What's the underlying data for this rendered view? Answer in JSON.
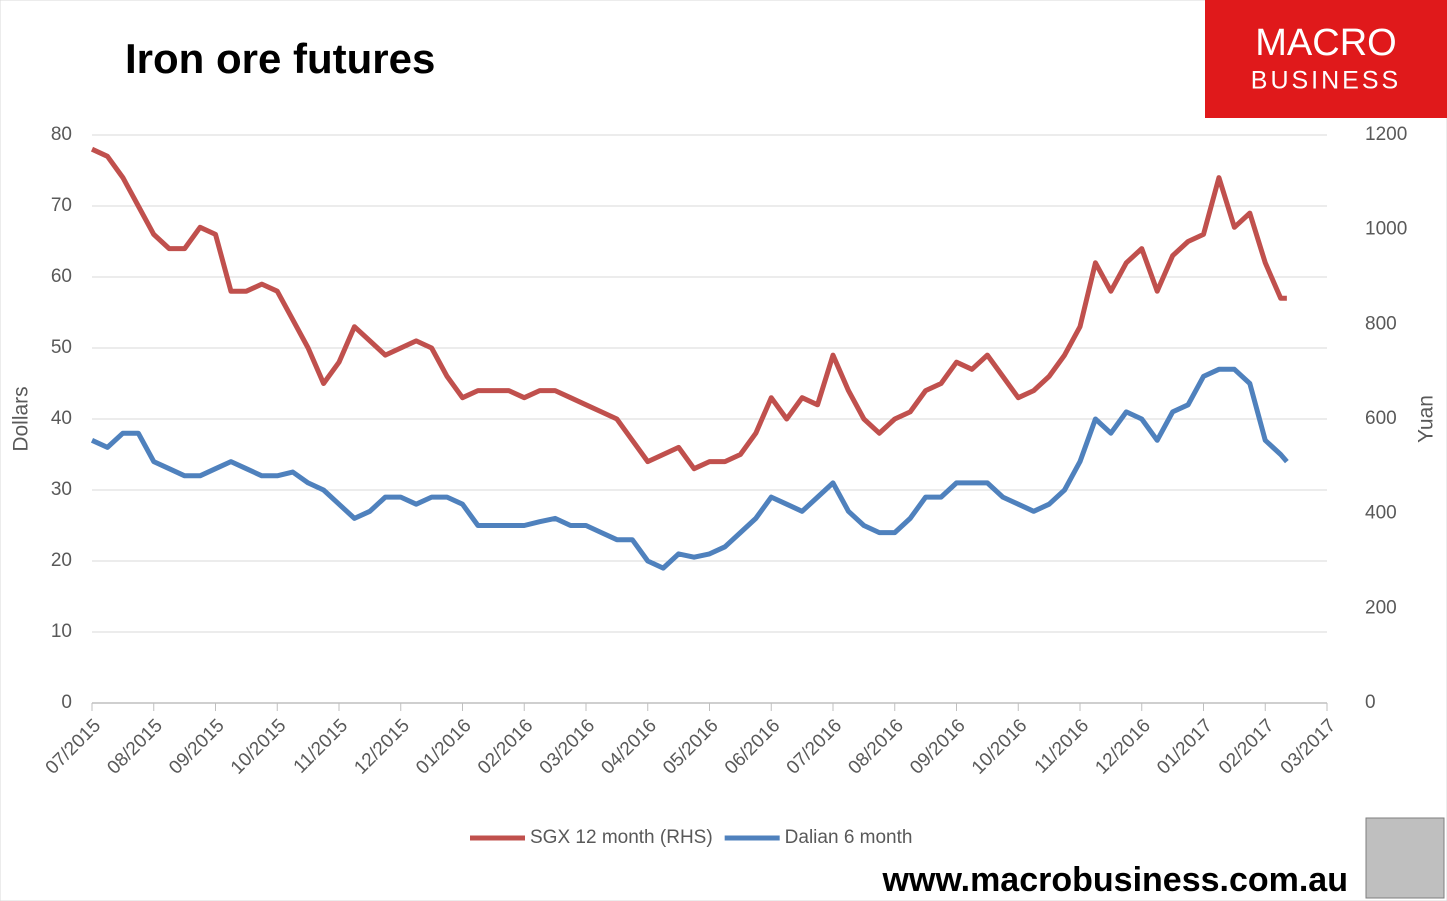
{
  "chart_data": {
    "type": "line",
    "title": "Iron ore futures",
    "logo": {
      "line1": "MACRO",
      "line2": "BUSINESS"
    },
    "footer": "www.macrobusiness.com.au",
    "y_label": "Dollars",
    "y2_label": "Yuan",
    "xlim": [
      0,
      20
    ],
    "xticks": [
      {
        "value": 0,
        "label": "07/2015"
      },
      {
        "value": 1,
        "label": "08/2015"
      },
      {
        "value": 2,
        "label": "09/2015"
      },
      {
        "value": 3,
        "label": "10/2015"
      },
      {
        "value": 4,
        "label": "11/2015"
      },
      {
        "value": 5,
        "label": "12/2015"
      },
      {
        "value": 6,
        "label": "01/2016"
      },
      {
        "value": 7,
        "label": "02/2016"
      },
      {
        "value": 8,
        "label": "03/2016"
      },
      {
        "value": 9,
        "label": "04/2016"
      },
      {
        "value": 10,
        "label": "05/2016"
      },
      {
        "value": 11,
        "label": "06/2016"
      },
      {
        "value": 12,
        "label": "07/2016"
      },
      {
        "value": 13,
        "label": "08/2016"
      },
      {
        "value": 14,
        "label": "09/2016"
      },
      {
        "value": 15,
        "label": "10/2016"
      },
      {
        "value": 16,
        "label": "11/2016"
      },
      {
        "value": 17,
        "label": "12/2016"
      },
      {
        "value": 18,
        "label": "01/2017"
      },
      {
        "value": 19,
        "label": "02/2017"
      },
      {
        "value": 20,
        "label": "03/2017"
      }
    ],
    "ylim": [
      0,
      80
    ],
    "yticks": [
      0,
      10,
      20,
      30,
      40,
      50,
      60,
      70,
      80
    ],
    "y2lim": [
      0,
      1200
    ],
    "y2ticks": [
      0,
      200,
      400,
      600,
      800,
      1000,
      1200
    ],
    "grid": true,
    "legend": "bottom",
    "x": [
      0,
      0.25,
      0.5,
      0.75,
      1,
      1.25,
      1.5,
      1.75,
      2,
      2.25,
      2.5,
      2.75,
      3,
      3.25,
      3.5,
      3.75,
      4,
      4.25,
      4.5,
      4.75,
      5,
      5.25,
      5.5,
      5.75,
      6,
      6.25,
      6.5,
      6.75,
      7,
      7.25,
      7.5,
      7.75,
      8,
      8.25,
      8.5,
      8.75,
      9,
      9.25,
      9.5,
      9.75,
      10,
      10.25,
      10.5,
      10.75,
      11,
      11.25,
      11.5,
      11.75,
      12,
      12.25,
      12.5,
      12.75,
      13,
      13.25,
      13.5,
      13.75,
      14,
      14.25,
      14.5,
      14.75,
      15,
      15.25,
      15.5,
      15.75,
      16,
      16.25,
      16.5,
      16.75,
      17,
      17.25,
      17.5,
      17.75,
      18,
      18.25,
      18.5,
      18.75,
      19,
      19.25,
      19.35
    ],
    "series": [
      {
        "name": "SGX 12 month (RHS)",
        "color": "#c0504d",
        "values": [
          78,
          77,
          74,
          70,
          66,
          64,
          64,
          67,
          66,
          58,
          58,
          59,
          58,
          54,
          50,
          45,
          48,
          53,
          51,
          49,
          50,
          51,
          50,
          46,
          43,
          44,
          44,
          44,
          43,
          44,
          44,
          43,
          42,
          41,
          40,
          37,
          34,
          35,
          36,
          33,
          34,
          34,
          35,
          38,
          43,
          40,
          43,
          42,
          49,
          44,
          40,
          38,
          40,
          41,
          44,
          45,
          48,
          47,
          49,
          46,
          43,
          44,
          46,
          49,
          53,
          62,
          58,
          62,
          64,
          58,
          63,
          65,
          66,
          74,
          67,
          69,
          62,
          57,
          57
        ]
      },
      {
        "name": "Dalian 6 month",
        "color": "#4f81bd",
        "axis": "y2",
        "values": [
          555,
          540,
          570,
          570,
          510,
          495,
          480,
          480,
          495,
          510,
          495,
          480,
          480,
          488,
          465,
          450,
          420,
          390,
          405,
          435,
          435,
          420,
          435,
          435,
          420,
          375,
          375,
          375,
          375,
          383,
          390,
          375,
          375,
          360,
          345,
          345,
          300,
          285,
          315,
          308,
          315,
          330,
          360,
          390,
          435,
          420,
          405,
          435,
          465,
          405,
          375,
          360,
          360,
          390,
          435,
          435,
          465,
          465,
          465,
          435,
          420,
          405,
          420,
          450,
          510,
          600,
          570,
          615,
          600,
          555,
          615,
          630,
          690,
          705,
          705,
          675,
          555,
          525,
          510
        ]
      }
    ]
  }
}
